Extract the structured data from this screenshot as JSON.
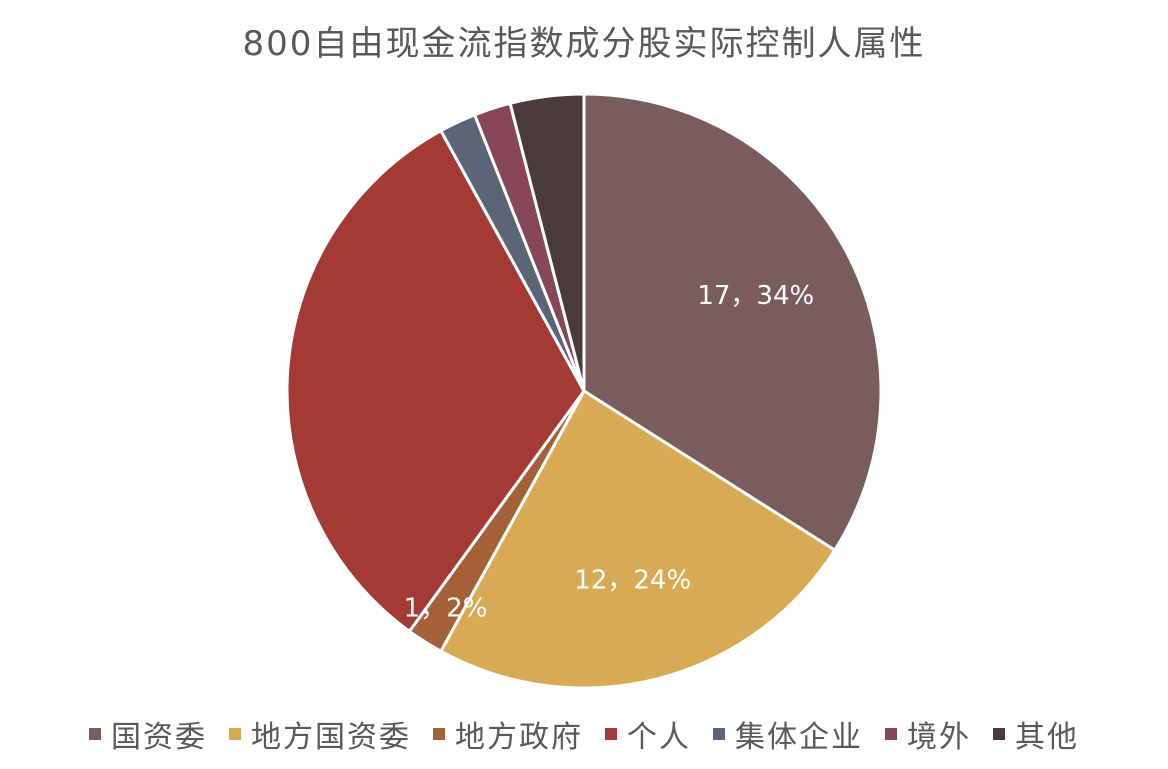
{
  "chart_data": {
    "type": "pie",
    "title": "800自由现金流指数成分股实际控制人属性",
    "legend_position": "bottom",
    "series": [
      {
        "name": "国资委",
        "value": 17,
        "percent": "34%",
        "label": "17，34%",
        "color": "#7A5C5C"
      },
      {
        "name": "地方国资委",
        "value": 12,
        "percent": "24%",
        "label": "12，24%",
        "color": "#D9AA54"
      },
      {
        "name": "地方政府",
        "value": 1,
        "percent": "2%",
        "label": "1，2%",
        "color": "#A46138"
      },
      {
        "name": "个人",
        "value": 16,
        "percent": "32%",
        "label": "",
        "color": "#A33A33"
      },
      {
        "name": "集体企业",
        "value": 1,
        "percent": "2%",
        "label": "",
        "color": "#5C6477"
      },
      {
        "name": "境外",
        "value": 1,
        "percent": "2%",
        "label": "",
        "color": "#8A4659"
      },
      {
        "name": "其他",
        "value": 2,
        "percent": "4%",
        "label": "",
        "color": "#4A3A3A"
      }
    ]
  }
}
